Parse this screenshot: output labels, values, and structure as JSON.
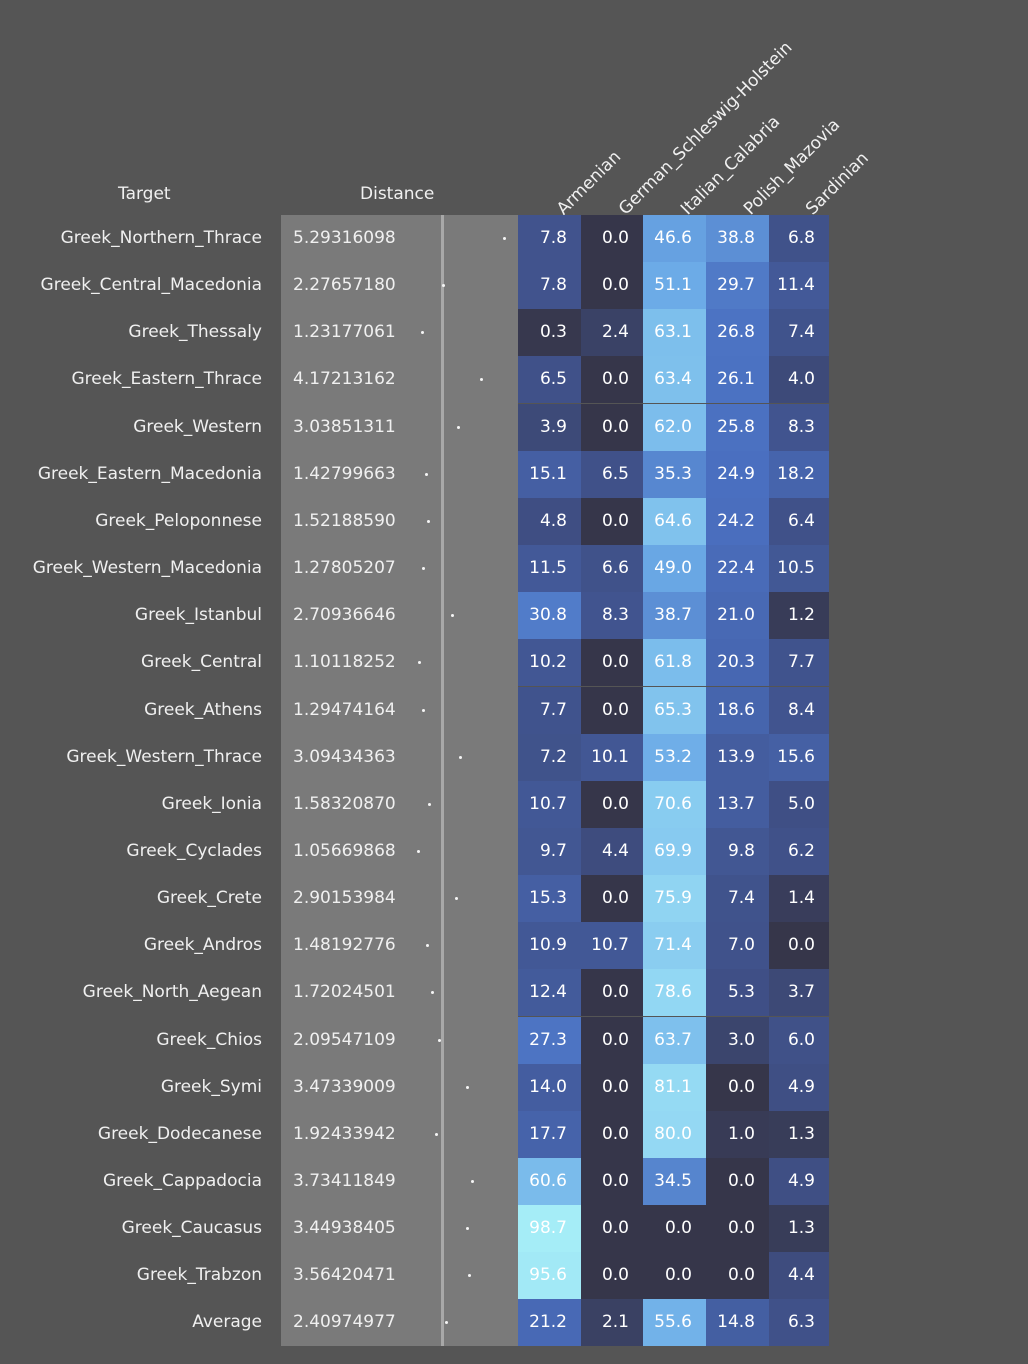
{
  "header": {
    "target_label": "Target",
    "distance_label": "Distance"
  },
  "columns": [
    "Armenian",
    "German_Schleswig-Holstein",
    "Italian_Calabria",
    "Polish_Mazovia",
    "Sardinian"
  ],
  "rows": [
    {
      "target": "Greek_Northern_Thrace",
      "distance": "5.29316098",
      "values": [
        "7.8",
        "0.0",
        "46.6",
        "38.8",
        "6.8"
      ]
    },
    {
      "target": "Greek_Central_Macedonia",
      "distance": "2.27657180",
      "values": [
        "7.8",
        "0.0",
        "51.1",
        "29.7",
        "11.4"
      ]
    },
    {
      "target": "Greek_Thessaly",
      "distance": "1.23177061",
      "values": [
        "0.3",
        "2.4",
        "63.1",
        "26.8",
        "7.4"
      ]
    },
    {
      "target": "Greek_Eastern_Thrace",
      "distance": "4.17213162",
      "values": [
        "6.5",
        "0.0",
        "63.4",
        "26.1",
        "4.0"
      ]
    },
    {
      "target": "Greek_Western",
      "distance": "3.03851311",
      "values": [
        "3.9",
        "0.0",
        "62.0",
        "25.8",
        "8.3"
      ]
    },
    {
      "target": "Greek_Eastern_Macedonia",
      "distance": "1.42799663",
      "values": [
        "15.1",
        "6.5",
        "35.3",
        "24.9",
        "18.2"
      ]
    },
    {
      "target": "Greek_Peloponnese",
      "distance": "1.52188590",
      "values": [
        "4.8",
        "0.0",
        "64.6",
        "24.2",
        "6.4"
      ]
    },
    {
      "target": "Greek_Western_Macedonia",
      "distance": "1.27805207",
      "values": [
        "11.5",
        "6.6",
        "49.0",
        "22.4",
        "10.5"
      ]
    },
    {
      "target": "Greek_Istanbul",
      "distance": "2.70936646",
      "values": [
        "30.8",
        "8.3",
        "38.7",
        "21.0",
        "1.2"
      ]
    },
    {
      "target": "Greek_Central",
      "distance": "1.10118252",
      "values": [
        "10.2",
        "0.0",
        "61.8",
        "20.3",
        "7.7"
      ]
    },
    {
      "target": "Greek_Athens",
      "distance": "1.29474164",
      "values": [
        "7.7",
        "0.0",
        "65.3",
        "18.6",
        "8.4"
      ]
    },
    {
      "target": "Greek_Western_Thrace",
      "distance": "3.09434363",
      "values": [
        "7.2",
        "10.1",
        "53.2",
        "13.9",
        "15.6"
      ]
    },
    {
      "target": "Greek_Ionia",
      "distance": "1.58320870",
      "values": [
        "10.7",
        "0.0",
        "70.6",
        "13.7",
        "5.0"
      ]
    },
    {
      "target": "Greek_Cyclades",
      "distance": "1.05669868",
      "values": [
        "9.7",
        "4.4",
        "69.9",
        "9.8",
        "6.2"
      ]
    },
    {
      "target": "Greek_Crete",
      "distance": "2.90153984",
      "values": [
        "15.3",
        "0.0",
        "75.9",
        "7.4",
        "1.4"
      ]
    },
    {
      "target": "Greek_Andros",
      "distance": "1.48192776",
      "values": [
        "10.9",
        "10.7",
        "71.4",
        "7.0",
        "0.0"
      ]
    },
    {
      "target": "Greek_North_Aegean",
      "distance": "1.72024501",
      "values": [
        "12.4",
        "0.0",
        "78.6",
        "5.3",
        "3.7"
      ]
    },
    {
      "target": "Greek_Chios",
      "distance": "2.09547109",
      "values": [
        "27.3",
        "0.0",
        "63.7",
        "3.0",
        "6.0"
      ]
    },
    {
      "target": "Greek_Symi",
      "distance": "3.47339009",
      "values": [
        "14.0",
        "0.0",
        "81.1",
        "0.0",
        "4.9"
      ]
    },
    {
      "target": "Greek_Dodecanese",
      "distance": "1.92433942",
      "values": [
        "17.7",
        "0.0",
        "80.0",
        "1.0",
        "1.3"
      ]
    },
    {
      "target": "Greek_Cappadocia",
      "distance": "3.73411849",
      "values": [
        "60.6",
        "0.0",
        "34.5",
        "0.0",
        "4.9"
      ]
    },
    {
      "target": "Greek_Caucasus",
      "distance": "3.44938405",
      "values": [
        "98.7",
        "0.0",
        "0.0",
        "0.0",
        "1.3"
      ]
    },
    {
      "target": "Greek_Trabzon",
      "distance": "3.56420471",
      "values": [
        "95.6",
        "0.0",
        "0.0",
        "0.0",
        "4.4"
      ]
    }
  ],
  "average": {
    "target": "Average",
    "distance": "2.40974977",
    "values": [
      "21.2",
      "2.1",
      "55.6",
      "14.8",
      "6.3"
    ]
  },
  "colors": {
    "background": "#555555",
    "distance_panel": "#7a7a7a",
    "distance_marker_line": "#a8a8a8",
    "scale": [
      "#36364a",
      "#3f4f85",
      "#4a6fc0",
      "#6aa9e6",
      "#8fd3f2",
      "#a6eef7"
    ]
  }
}
